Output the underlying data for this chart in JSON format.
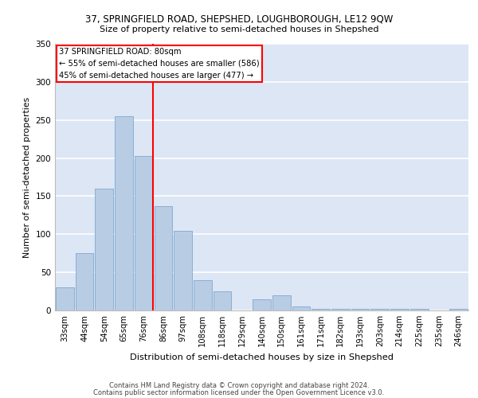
{
  "title_line1": "37, SPRINGFIELD ROAD, SHEPSHED, LOUGHBOROUGH, LE12 9QW",
  "title_line2": "Size of property relative to semi-detached houses in Shepshed",
  "xlabel": "Distribution of semi-detached houses by size in Shepshed",
  "ylabel": "Number of semi-detached properties",
  "footer1": "Contains HM Land Registry data © Crown copyright and database right 2024.",
  "footer2": "Contains public sector information licensed under the Open Government Licence v3.0.",
  "categories": [
    "33sqm",
    "44sqm",
    "54sqm",
    "65sqm",
    "76sqm",
    "86sqm",
    "97sqm",
    "108sqm",
    "118sqm",
    "129sqm",
    "140sqm",
    "150sqm",
    "161sqm",
    "171sqm",
    "182sqm",
    "193sqm",
    "203sqm",
    "214sqm",
    "225sqm",
    "235sqm",
    "246sqm"
  ],
  "values": [
    30,
    75,
    160,
    255,
    203,
    137,
    105,
    40,
    25,
    0,
    15,
    20,
    5,
    2,
    2,
    2,
    2,
    2,
    2,
    0,
    2
  ],
  "bar_color": "#b8cce4",
  "bar_edge_color": "#7fa8d0",
  "property_bin_index": 4,
  "annotation_text1": "37 SPRINGFIELD ROAD: 80sqm",
  "annotation_text2": "← 55% of semi-detached houses are smaller (586)",
  "annotation_text3": "45% of semi-detached houses are larger (477) →",
  "vline_color": "red",
  "box_edge_color": "red",
  "bg_color": "#dce6f5",
  "ylim": [
    0,
    350
  ],
  "yticks": [
    0,
    50,
    100,
    150,
    200,
    250,
    300,
    350
  ]
}
